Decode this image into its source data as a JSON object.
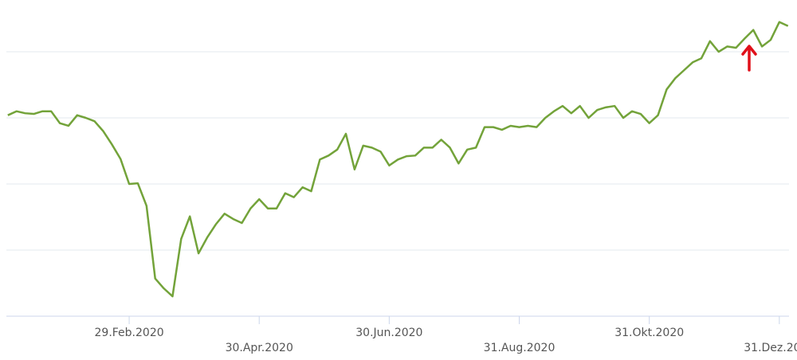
{
  "chart_data": {
    "type": "line",
    "categories": [
      null,
      null,
      null,
      null,
      null,
      null,
      null,
      null,
      null,
      null,
      null,
      null,
      null,
      null,
      "29.Feb.2020",
      null,
      null,
      null,
      null,
      null,
      null,
      null,
      null,
      null,
      null,
      null,
      null,
      null,
      null,
      "30.Apr.2020",
      null,
      null,
      null,
      null,
      null,
      null,
      null,
      null,
      null,
      null,
      null,
      null,
      null,
      null,
      "30.Jun.2020",
      null,
      null,
      null,
      null,
      null,
      null,
      null,
      null,
      null,
      null,
      null,
      null,
      null,
      null,
      "31.Aug.2020",
      null,
      null,
      null,
      null,
      null,
      null,
      null,
      null,
      null,
      null,
      null,
      null,
      null,
      null,
      "31.Okt.2020",
      null,
      null,
      null,
      null,
      null,
      null,
      null,
      null,
      null,
      null,
      null,
      null,
      null,
      null,
      "31.Dez.2020",
      null
    ],
    "values": [
      3.04,
      3.1,
      3.07,
      3.06,
      3.1,
      3.1,
      2.92,
      2.88,
      3.04,
      3.0,
      2.95,
      2.8,
      2.6,
      2.38,
      2.0,
      2.01,
      1.67,
      0.57,
      0.42,
      0.3,
      1.17,
      1.51,
      0.95,
      1.19,
      1.39,
      1.55,
      1.47,
      1.41,
      1.63,
      1.77,
      1.63,
      1.63,
      1.86,
      1.8,
      1.95,
      1.89,
      2.37,
      2.43,
      2.52,
      2.76,
      2.22,
      2.58,
      2.55,
      2.49,
      2.28,
      2.37,
      2.42,
      2.43,
      2.55,
      2.55,
      2.67,
      2.55,
      2.31,
      2.52,
      2.55,
      2.86,
      2.86,
      2.82,
      2.88,
      2.86,
      2.88,
      2.86,
      3.0,
      3.1,
      3.18,
      3.07,
      3.18,
      3.0,
      3.12,
      3.16,
      3.18,
      3.0,
      3.1,
      3.06,
      2.92,
      3.04,
      3.43,
      3.6,
      3.72,
      3.84,
      3.9,
      4.16,
      4.0,
      4.08,
      4.06,
      4.2,
      4.33,
      4.08,
      4.18,
      4.45,
      4.39
    ],
    "color": "#73a33a",
    "ylim": [
      0,
      4.6
    ],
    "yticks": [
      0,
      1,
      2,
      3,
      4
    ],
    "grid": true
  }
}
